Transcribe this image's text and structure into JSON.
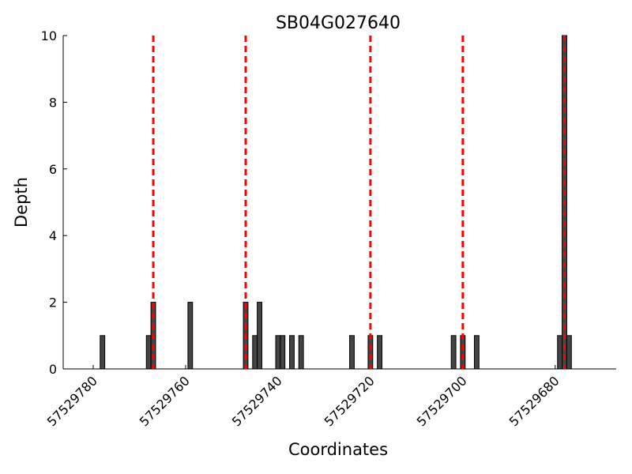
{
  "chart_data": {
    "type": "bar",
    "title": "SB04G027640",
    "x_label": "Coordinates",
    "y_label": "Depth",
    "x": [
      57529778,
      57529768,
      57529767,
      57529759,
      57529747,
      57529745,
      57529744,
      57529740,
      57529739,
      57529737,
      57529735,
      57529724,
      57529720,
      57529718,
      57529702,
      57529700,
      57529697,
      57529679,
      57529678,
      57529677
    ],
    "values": [
      1,
      1,
      2,
      2,
      2,
      1,
      2,
      1,
      1,
      1,
      1,
      1,
      1,
      1,
      1,
      1,
      1,
      1,
      10,
      1
    ],
    "color": "#444444",
    "vlines": [
      57529767,
      57529747,
      57529720,
      57529700,
      57529678
    ],
    "vline_color": "#ff0000",
    "xlim": [
      57529786.5,
      57529666.8
    ],
    "xticks": [
      57529780,
      57529760,
      57529740,
      57529720,
      57529700,
      57529680
    ],
    "ylim": [
      0,
      10
    ],
    "yticks": [
      0,
      2,
      4,
      6,
      8,
      10
    ]
  }
}
